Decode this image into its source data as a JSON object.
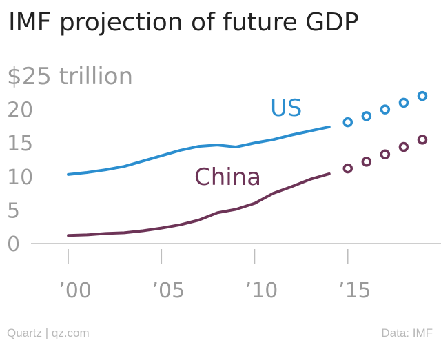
{
  "chart_data": {
    "type": "line",
    "title": "IMF projection of future GDP",
    "y_unit_label": "$25 trillion",
    "ylim": [
      0,
      25
    ],
    "xlim": [
      1998,
      2020
    ],
    "y_ticks": [
      0,
      5,
      10,
      15,
      20
    ],
    "x_ticks": [
      {
        "value": 2000,
        "label": "’00"
      },
      {
        "value": 2005,
        "label": "’05"
      },
      {
        "value": 2010,
        "label": "’10"
      },
      {
        "value": 2015,
        "label": "’15"
      }
    ],
    "grid": false,
    "series": [
      {
        "name": "US",
        "color": "#2b8ecf",
        "actual": {
          "x": [
            2000,
            2001,
            2002,
            2003,
            2004,
            2005,
            2006,
            2007,
            2008,
            2009,
            2010,
            2011,
            2012,
            2013,
            2014
          ],
          "y": [
            10.3,
            10.6,
            11.0,
            11.5,
            12.3,
            13.1,
            13.9,
            14.5,
            14.7,
            14.4,
            15.0,
            15.5,
            16.2,
            16.8,
            17.4
          ]
        },
        "projected": {
          "x": [
            2015,
            2016,
            2017,
            2018,
            2019
          ],
          "y": [
            18.1,
            19.0,
            20.0,
            21.0,
            22.0
          ]
        }
      },
      {
        "name": "China",
        "color": "#6d3457",
        "actual": {
          "x": [
            2000,
            2001,
            2002,
            2003,
            2004,
            2005,
            2006,
            2007,
            2008,
            2009,
            2010,
            2011,
            2012,
            2013,
            2014
          ],
          "y": [
            1.2,
            1.3,
            1.5,
            1.6,
            1.9,
            2.3,
            2.8,
            3.5,
            4.6,
            5.1,
            6.0,
            7.5,
            8.5,
            9.6,
            10.4
          ]
        },
        "projected": {
          "x": [
            2015,
            2016,
            2017,
            2018,
            2019
          ],
          "y": [
            11.2,
            12.2,
            13.3,
            14.4,
            15.5
          ]
        }
      }
    ],
    "axis_color": "#bdbdbd",
    "tick_color": "#9a9a9a"
  },
  "footer": {
    "source_left": "Quartz | qz.com",
    "source_right": "Data: IMF"
  }
}
